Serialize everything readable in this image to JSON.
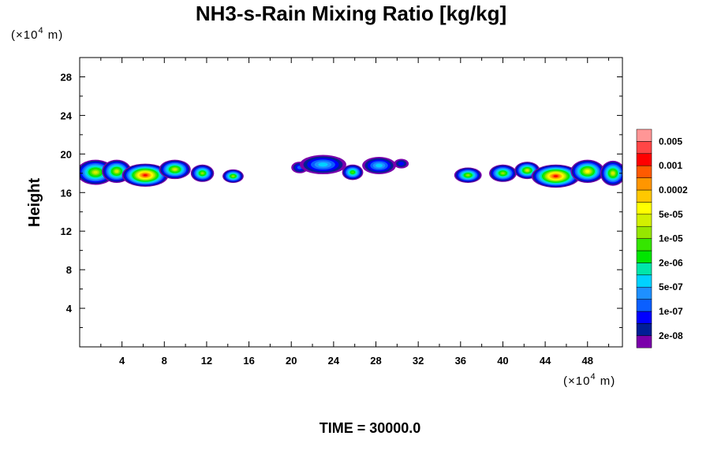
{
  "chart_data": {
    "type": "heatmap",
    "title": "NH3-s-Rain Mixing Ratio [kg/kg]",
    "xlabel_unit": "(×10",
    "xlabel_unit_exp": "4",
    "xlabel_unit_tail": " m)",
    "ylabel": "Height",
    "ylabel_unit": "(×10",
    "ylabel_unit_exp": "4",
    "ylabel_unit_tail": " m)",
    "xlim": [
      0,
      51.3
    ],
    "ylim": [
      0,
      30
    ],
    "x_ticks": [
      4,
      8,
      12,
      16,
      20,
      24,
      28,
      32,
      36,
      40,
      44,
      48
    ],
    "y_ticks": [
      4,
      8,
      12,
      16,
      20,
      24,
      28
    ],
    "time_label": "TIME = 30000.0",
    "colorbar": {
      "colors": [
        "#7a00aa",
        "#001e96",
        "#0000ff",
        "#0a5fff",
        "#1e90ff",
        "#00d2ff",
        "#00e6aa",
        "#00e600",
        "#35e600",
        "#96e600",
        "#d2f000",
        "#ffff00",
        "#ffc800",
        "#ff9600",
        "#ff5a00",
        "#ff0000",
        "#ff4646",
        "#ff9696"
      ],
      "labels": [
        "2e-08",
        "1e-07",
        "5e-07",
        "2e-06",
        "1e-05",
        "5e-05",
        "0.0002",
        "0.001",
        "0.005"
      ],
      "label_bands": [
        1,
        3,
        5,
        7,
        9,
        11,
        13,
        15,
        17
      ]
    },
    "features": [
      {
        "x": 1.5,
        "y": 18.1,
        "rx": 1.8,
        "ry": 1.3,
        "level": 10
      },
      {
        "x": 3.5,
        "y": 18.2,
        "rx": 1.4,
        "ry": 1.2,
        "level": 10
      },
      {
        "x": 6.2,
        "y": 17.8,
        "rx": 2.2,
        "ry": 1.2,
        "level": 15
      },
      {
        "x": 9.0,
        "y": 18.4,
        "rx": 1.5,
        "ry": 1.0,
        "level": 10
      },
      {
        "x": 11.6,
        "y": 18.0,
        "rx": 1.1,
        "ry": 0.9,
        "level": 9
      },
      {
        "x": 14.5,
        "y": 17.7,
        "rx": 1.0,
        "ry": 0.7,
        "level": 9
      },
      {
        "x": 20.8,
        "y": 18.6,
        "rx": 0.8,
        "ry": 0.6,
        "level": 3
      },
      {
        "x": 23.0,
        "y": 18.9,
        "rx": 2.2,
        "ry": 1.0,
        "level": 5
      },
      {
        "x": 25.8,
        "y": 18.1,
        "rx": 1.0,
        "ry": 0.8,
        "level": 8
      },
      {
        "x": 28.3,
        "y": 18.8,
        "rx": 1.6,
        "ry": 0.9,
        "level": 5
      },
      {
        "x": 30.4,
        "y": 19.0,
        "rx": 0.7,
        "ry": 0.5,
        "level": 2
      },
      {
        "x": 36.7,
        "y": 17.8,
        "rx": 1.3,
        "ry": 0.8,
        "level": 9
      },
      {
        "x": 40.0,
        "y": 18.0,
        "rx": 1.3,
        "ry": 0.9,
        "level": 9
      },
      {
        "x": 42.3,
        "y": 18.3,
        "rx": 1.2,
        "ry": 0.9,
        "level": 10
      },
      {
        "x": 45.0,
        "y": 17.7,
        "rx": 2.3,
        "ry": 1.2,
        "level": 15
      },
      {
        "x": 48.0,
        "y": 18.2,
        "rx": 1.6,
        "ry": 1.2,
        "level": 11
      },
      {
        "x": 50.4,
        "y": 18.0,
        "rx": 1.2,
        "ry": 1.3,
        "level": 10
      }
    ]
  }
}
